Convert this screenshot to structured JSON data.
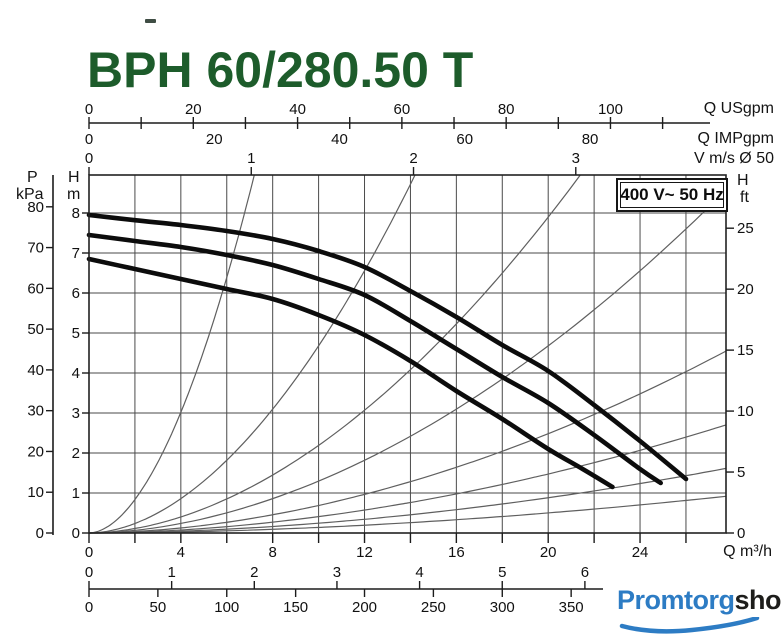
{
  "title": "BPH 60/280.50 T",
  "badge": "400 V~ 50 Hz",
  "labels": {
    "p": "P",
    "kpa": "kPa",
    "h_m_1": "H",
    "h_m_2": "m",
    "h_ft_1": "H",
    "h_ft_2": "ft",
    "usgpm": "Q USgpm",
    "impgpm": "Q IMPgpm",
    "vms": "V m/s Ø 50",
    "qm3h": "Q m³/h"
  },
  "logo": {
    "part1": "Promtorg",
    "part2": "shop",
    "blue": "#2d7cc4",
    "dark": "#1d1d1b"
  },
  "colors": {
    "title_green": "#1d5c2b",
    "grid": "#4a4a4a",
    "frame": "#222222",
    "tick": "#1c1c1c",
    "pump_curve": "#0c0c0c",
    "thin_curve": "#5f5f5f"
  },
  "chart_data": {
    "type": "line",
    "title": "BPH 60/280.50 T",
    "annotation": "400 V~ 50 Hz",
    "grid": {
      "x_step_m3h": 2,
      "y_step_m": 1,
      "x_range_m3h": [
        0,
        27.74
      ],
      "y_range_m": [
        0,
        8.95
      ]
    },
    "x_axes": {
      "m3h": {
        "label": "Q m³/h",
        "ticks": [
          0,
          4,
          8,
          12,
          16,
          20,
          24
        ],
        "minor_step": 2,
        "minor_max": 26
      },
      "usgpm": {
        "label": "Q USgpm",
        "ticks": [
          0,
          20,
          40,
          60,
          80,
          100
        ],
        "minor_step": 10,
        "minor_max": 110,
        "units_per_m3h": 4.403
      },
      "impgpm": {
        "label": "Q IMPgpm",
        "ticks": [
          0,
          20,
          40,
          60,
          80
        ],
        "units_per_m3h": 3.666
      },
      "vms": {
        "label": "V m/s Ø 50",
        "ticks": [
          0,
          1,
          2,
          3
        ],
        "units_per_m3h": 0.1415
      },
      "ls": {
        "label": "",
        "ticks": [
          0,
          1,
          2,
          3,
          4,
          5,
          6
        ],
        "units_per_m3h": 0.2778
      },
      "lmin": {
        "label": "",
        "ticks": [
          0,
          50,
          100,
          150,
          200,
          250,
          300,
          350
        ],
        "units_per_m3h": 16.667
      }
    },
    "y_axes": {
      "h_m": {
        "label": "H m",
        "ticks": [
          0,
          1,
          2,
          3,
          4,
          5,
          6,
          7,
          8
        ]
      },
      "p_kpa": {
        "label": "P kPa",
        "ticks": [
          0,
          10,
          20,
          30,
          40,
          50,
          60,
          70,
          80
        ],
        "units_per_m": 9.81
      },
      "h_ft": {
        "label": "H ft",
        "ticks": [
          0,
          5,
          10,
          15,
          20,
          25
        ],
        "units_per_m": 3.2808
      }
    },
    "series": [
      {
        "name": "pump-curve-top",
        "points_q_h": [
          [
            0,
            7.95
          ],
          [
            2,
            7.82
          ],
          [
            4,
            7.7
          ],
          [
            6,
            7.55
          ],
          [
            8,
            7.35
          ],
          [
            10,
            7.05
          ],
          [
            12,
            6.65
          ],
          [
            14,
            6.05
          ],
          [
            16,
            5.4
          ],
          [
            18,
            4.7
          ],
          [
            20,
            4.05
          ],
          [
            22,
            3.2
          ],
          [
            24,
            2.3
          ],
          [
            26,
            1.35
          ]
        ]
      },
      {
        "name": "pump-curve-middle",
        "points_q_h": [
          [
            0,
            7.45
          ],
          [
            2,
            7.3
          ],
          [
            4,
            7.15
          ],
          [
            6,
            6.95
          ],
          [
            8,
            6.7
          ],
          [
            10,
            6.35
          ],
          [
            12,
            5.95
          ],
          [
            14,
            5.3
          ],
          [
            16,
            4.6
          ],
          [
            18,
            3.9
          ],
          [
            20,
            3.25
          ],
          [
            22,
            2.45
          ],
          [
            24,
            1.6
          ],
          [
            24.9,
            1.25
          ]
        ]
      },
      {
        "name": "pump-curve-bottom",
        "points_q_h": [
          [
            0,
            6.85
          ],
          [
            2,
            6.6
          ],
          [
            4,
            6.35
          ],
          [
            6,
            6.1
          ],
          [
            8,
            5.85
          ],
          [
            10,
            5.45
          ],
          [
            12,
            4.95
          ],
          [
            14,
            4.3
          ],
          [
            16,
            3.55
          ],
          [
            18,
            2.85
          ],
          [
            20,
            2.1
          ],
          [
            21.5,
            1.6
          ],
          [
            22.8,
            1.15
          ]
        ]
      }
    ],
    "velocity_curves": {
      "exponent": 1.85,
      "q_at_top_edge": [
        7.2,
        14.2,
        21.4,
        28.4,
        40,
        53,
        70,
        95
      ]
    }
  }
}
